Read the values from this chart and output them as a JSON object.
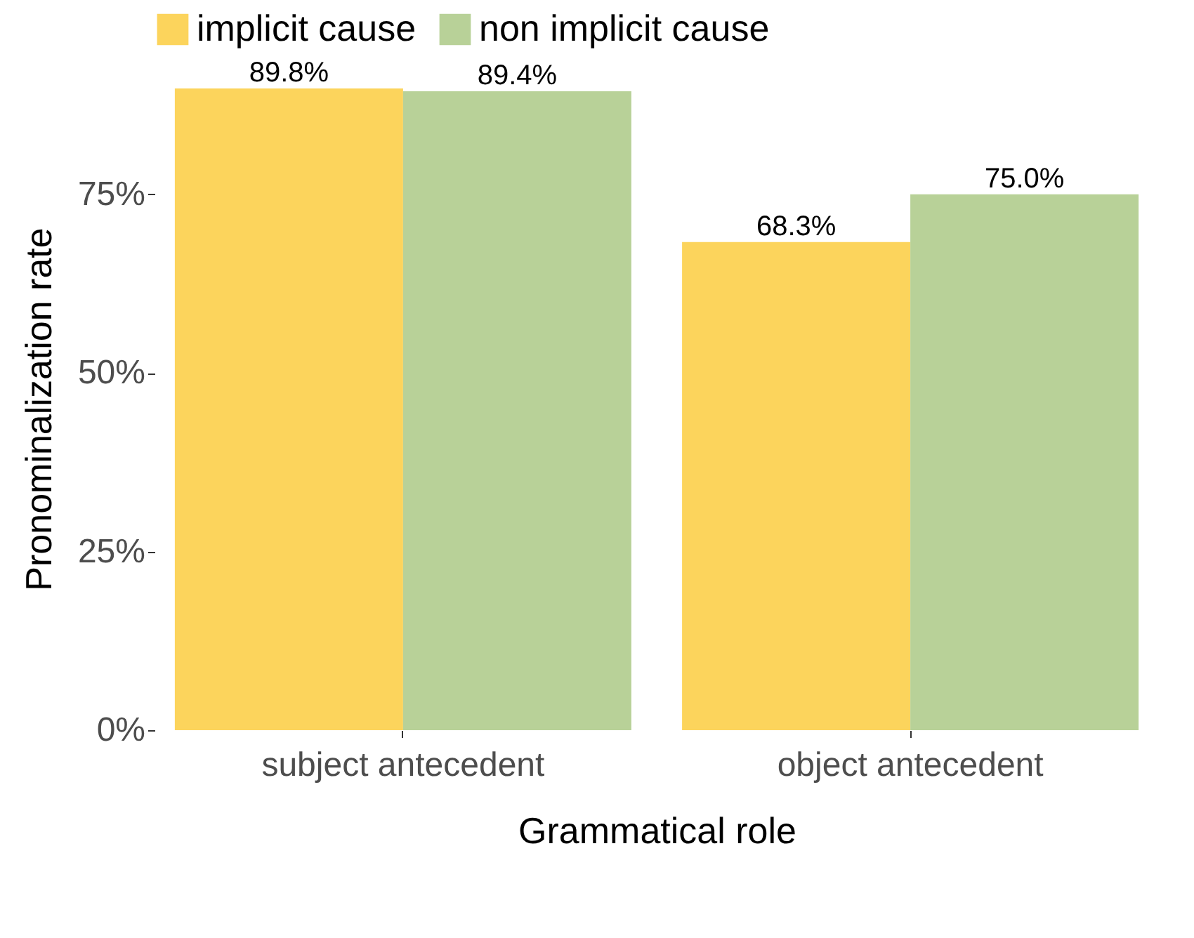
{
  "chart_data": {
    "type": "bar",
    "xlabel": "Grammatical role",
    "ylabel": "Pronominalization rate",
    "categories": [
      "subject antecedent",
      "object antecedent"
    ],
    "series": [
      {
        "name": "implicit cause",
        "color": "#fcd45c",
        "values": [
          89.8,
          68.3
        ],
        "value_labels": [
          "89.8%",
          "68.3%"
        ]
      },
      {
        "name": "non implicit cause",
        "color": "#b8d198",
        "values": [
          89.4,
          75.0
        ],
        "value_labels": [
          "89.4%",
          "75.0%"
        ]
      }
    ],
    "ylim": [
      0,
      90
    ],
    "yticks": [
      {
        "value": 0,
        "label": "0%"
      },
      {
        "value": 25,
        "label": "25%"
      },
      {
        "value": 50,
        "label": "50%"
      },
      {
        "value": 75,
        "label": "75%"
      }
    ],
    "grid": false,
    "legend": "top"
  }
}
